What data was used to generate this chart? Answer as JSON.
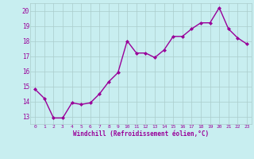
{
  "x": [
    0,
    1,
    2,
    3,
    4,
    5,
    6,
    7,
    8,
    9,
    10,
    11,
    12,
    13,
    14,
    15,
    16,
    17,
    18,
    19,
    20,
    21,
    22,
    23
  ],
  "y": [
    14.8,
    14.2,
    12.9,
    12.9,
    13.9,
    13.8,
    13.9,
    14.5,
    15.3,
    15.9,
    18.0,
    17.2,
    17.2,
    16.9,
    17.4,
    18.3,
    18.3,
    18.8,
    19.2,
    19.2,
    20.2,
    18.8,
    18.2,
    17.8
  ],
  "line_color": "#990099",
  "marker": "D",
  "marker_size": 2,
  "background_color": "#c8eef0",
  "grid_color": "#aacccc",
  "xlabel": "Windchill (Refroidissement éolien,°C)",
  "xlabel_color": "#990099",
  "tick_color": "#990099",
  "ylim": [
    12.5,
    20.5
  ],
  "xlim": [
    -0.5,
    23.5
  ],
  "yticks": [
    13,
    14,
    15,
    16,
    17,
    18,
    19,
    20
  ],
  "xticks": [
    0,
    1,
    2,
    3,
    4,
    5,
    6,
    7,
    8,
    9,
    10,
    11,
    12,
    13,
    14,
    15,
    16,
    17,
    18,
    19,
    20,
    21,
    22,
    23
  ],
  "line_width": 1.0
}
